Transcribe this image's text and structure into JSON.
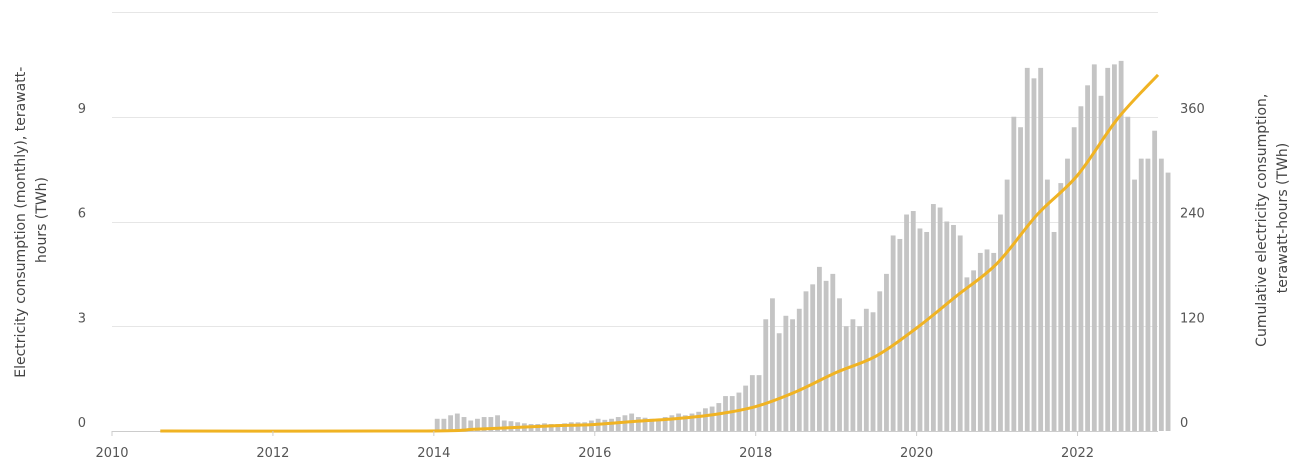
{
  "chart_data": {
    "type": "bar",
    "x_axis": {
      "min": 2010.0,
      "max": 2023.0,
      "tick_labels": [
        "2010",
        "2012",
        "2014",
        "2016",
        "2018",
        "2020",
        "2022"
      ]
    },
    "y_left": {
      "label_line1": "Electricity consumption (monthly), terawatt-",
      "label_line2": "hours (TWh)",
      "min": 0,
      "max": 12,
      "tick_values": [
        0,
        3,
        6,
        9
      ],
      "tick_labels": [
        "0",
        "3",
        "6",
        "9"
      ]
    },
    "y_right": {
      "label_line1": "Cumulative electricity consumption,",
      "label_line2": "terawatt-hours (TWh)",
      "min": 0,
      "max": 480,
      "tick_values": [
        0,
        120,
        240,
        360
      ],
      "tick_labels": [
        "0",
        "120",
        "240",
        "360"
      ]
    },
    "grid": true,
    "series": [
      {
        "kind": "bar",
        "axis": "left",
        "color": "#c4c4c4",
        "points": [
          [
            "2014-01",
            0.35
          ],
          [
            "2014-02",
            0.35
          ],
          [
            "2014-03",
            0.45
          ],
          [
            "2014-04",
            0.5
          ],
          [
            "2014-05",
            0.4
          ],
          [
            "2014-06",
            0.3
          ],
          [
            "2014-07",
            0.35
          ],
          [
            "2014-08",
            0.4
          ],
          [
            "2014-09",
            0.4
          ],
          [
            "2014-10",
            0.45
          ],
          [
            "2014-11",
            0.3
          ],
          [
            "2014-12",
            0.28
          ],
          [
            "2015-01",
            0.25
          ],
          [
            "2015-02",
            0.22
          ],
          [
            "2015-03",
            0.2
          ],
          [
            "2015-04",
            0.2
          ],
          [
            "2015-05",
            0.22
          ],
          [
            "2015-06",
            0.2
          ],
          [
            "2015-07",
            0.2
          ],
          [
            "2015-08",
            0.22
          ],
          [
            "2015-09",
            0.25
          ],
          [
            "2015-10",
            0.25
          ],
          [
            "2015-11",
            0.25
          ],
          [
            "2015-12",
            0.3
          ],
          [
            "2016-01",
            0.35
          ],
          [
            "2016-02",
            0.32
          ],
          [
            "2016-03",
            0.35
          ],
          [
            "2016-04",
            0.4
          ],
          [
            "2016-05",
            0.45
          ],
          [
            "2016-06",
            0.5
          ],
          [
            "2016-07",
            0.4
          ],
          [
            "2016-08",
            0.38
          ],
          [
            "2016-09",
            0.35
          ],
          [
            "2016-10",
            0.35
          ],
          [
            "2016-11",
            0.4
          ],
          [
            "2016-12",
            0.45
          ],
          [
            "2017-01",
            0.5
          ],
          [
            "2017-02",
            0.45
          ],
          [
            "2017-03",
            0.5
          ],
          [
            "2017-04",
            0.55
          ],
          [
            "2017-05",
            0.65
          ],
          [
            "2017-06",
            0.7
          ],
          [
            "2017-07",
            0.8
          ],
          [
            "2017-08",
            1.0
          ],
          [
            "2017-09",
            1.0
          ],
          [
            "2017-10",
            1.1
          ],
          [
            "2017-11",
            1.3
          ],
          [
            "2017-12",
            1.6
          ],
          [
            "2018-01",
            1.6
          ],
          [
            "2018-02",
            3.2
          ],
          [
            "2018-03",
            3.8
          ],
          [
            "2018-04",
            2.8
          ],
          [
            "2018-05",
            3.3
          ],
          [
            "2018-06",
            3.2
          ],
          [
            "2018-07",
            3.5
          ],
          [
            "2018-08",
            4.0
          ],
          [
            "2018-09",
            4.2
          ],
          [
            "2018-10",
            4.7
          ],
          [
            "2018-11",
            4.3
          ],
          [
            "2018-12",
            4.5
          ],
          [
            "2019-01",
            3.8
          ],
          [
            "2019-02",
            3.0
          ],
          [
            "2019-03",
            3.2
          ],
          [
            "2019-04",
            3.0
          ],
          [
            "2019-05",
            3.5
          ],
          [
            "2019-06",
            3.4
          ],
          [
            "2019-07",
            4.0
          ],
          [
            "2019-08",
            4.5
          ],
          [
            "2019-09",
            5.6
          ],
          [
            "2019-10",
            5.5
          ],
          [
            "2019-11",
            6.2
          ],
          [
            "2019-12",
            6.3
          ],
          [
            "2020-01",
            5.8
          ],
          [
            "2020-02",
            5.7
          ],
          [
            "2020-03",
            6.5
          ],
          [
            "2020-04",
            6.4
          ],
          [
            "2020-05",
            6.0
          ],
          [
            "2020-06",
            5.9
          ],
          [
            "2020-07",
            5.6
          ],
          [
            "2020-08",
            4.4
          ],
          [
            "2020-09",
            4.6
          ],
          [
            "2020-10",
            5.1
          ],
          [
            "2020-11",
            5.2
          ],
          [
            "2020-12",
            5.1
          ],
          [
            "2021-01",
            6.2
          ],
          [
            "2021-02",
            7.2
          ],
          [
            "2021-03",
            9.0
          ],
          [
            "2021-04",
            8.7
          ],
          [
            "2021-05",
            10.4
          ],
          [
            "2021-06",
            10.1
          ],
          [
            "2021-07",
            10.4
          ],
          [
            "2021-08",
            7.2
          ],
          [
            "2021-09",
            5.7
          ],
          [
            "2021-10",
            7.1
          ],
          [
            "2021-11",
            7.8
          ],
          [
            "2021-12",
            8.7
          ],
          [
            "2022-01",
            9.3
          ],
          [
            "2022-02",
            9.9
          ],
          [
            "2022-03",
            10.5
          ],
          [
            "2022-04",
            9.6
          ],
          [
            "2022-05",
            10.4
          ],
          [
            "2022-06",
            10.5
          ],
          [
            "2022-07",
            10.6
          ],
          [
            "2022-08",
            9.0
          ],
          [
            "2022-09",
            7.2
          ],
          [
            "2022-10",
            7.8
          ],
          [
            "2022-11",
            7.8
          ],
          [
            "2022-12",
            8.6
          ],
          [
            "2023-01",
            7.8
          ],
          [
            "2023-02",
            7.4
          ]
        ]
      },
      {
        "kind": "line",
        "axis": "right",
        "color": "#f0b323",
        "points": [
          [
            2010.6,
            0
          ],
          [
            2013.9,
            0
          ],
          [
            2014.5,
            2
          ],
          [
            2015.0,
            4
          ],
          [
            2015.5,
            6
          ],
          [
            2016.0,
            7.5
          ],
          [
            2016.5,
            11
          ],
          [
            2017.0,
            14
          ],
          [
            2017.5,
            19
          ],
          [
            2018.0,
            28
          ],
          [
            2018.5,
            45
          ],
          [
            2019.0,
            67
          ],
          [
            2019.5,
            86
          ],
          [
            2020.0,
            118
          ],
          [
            2020.5,
            155
          ],
          [
            2021.0,
            192
          ],
          [
            2021.5,
            248
          ],
          [
            2022.0,
            293
          ],
          [
            2022.5,
            358
          ],
          [
            2023.0,
            408
          ]
        ]
      }
    ]
  }
}
